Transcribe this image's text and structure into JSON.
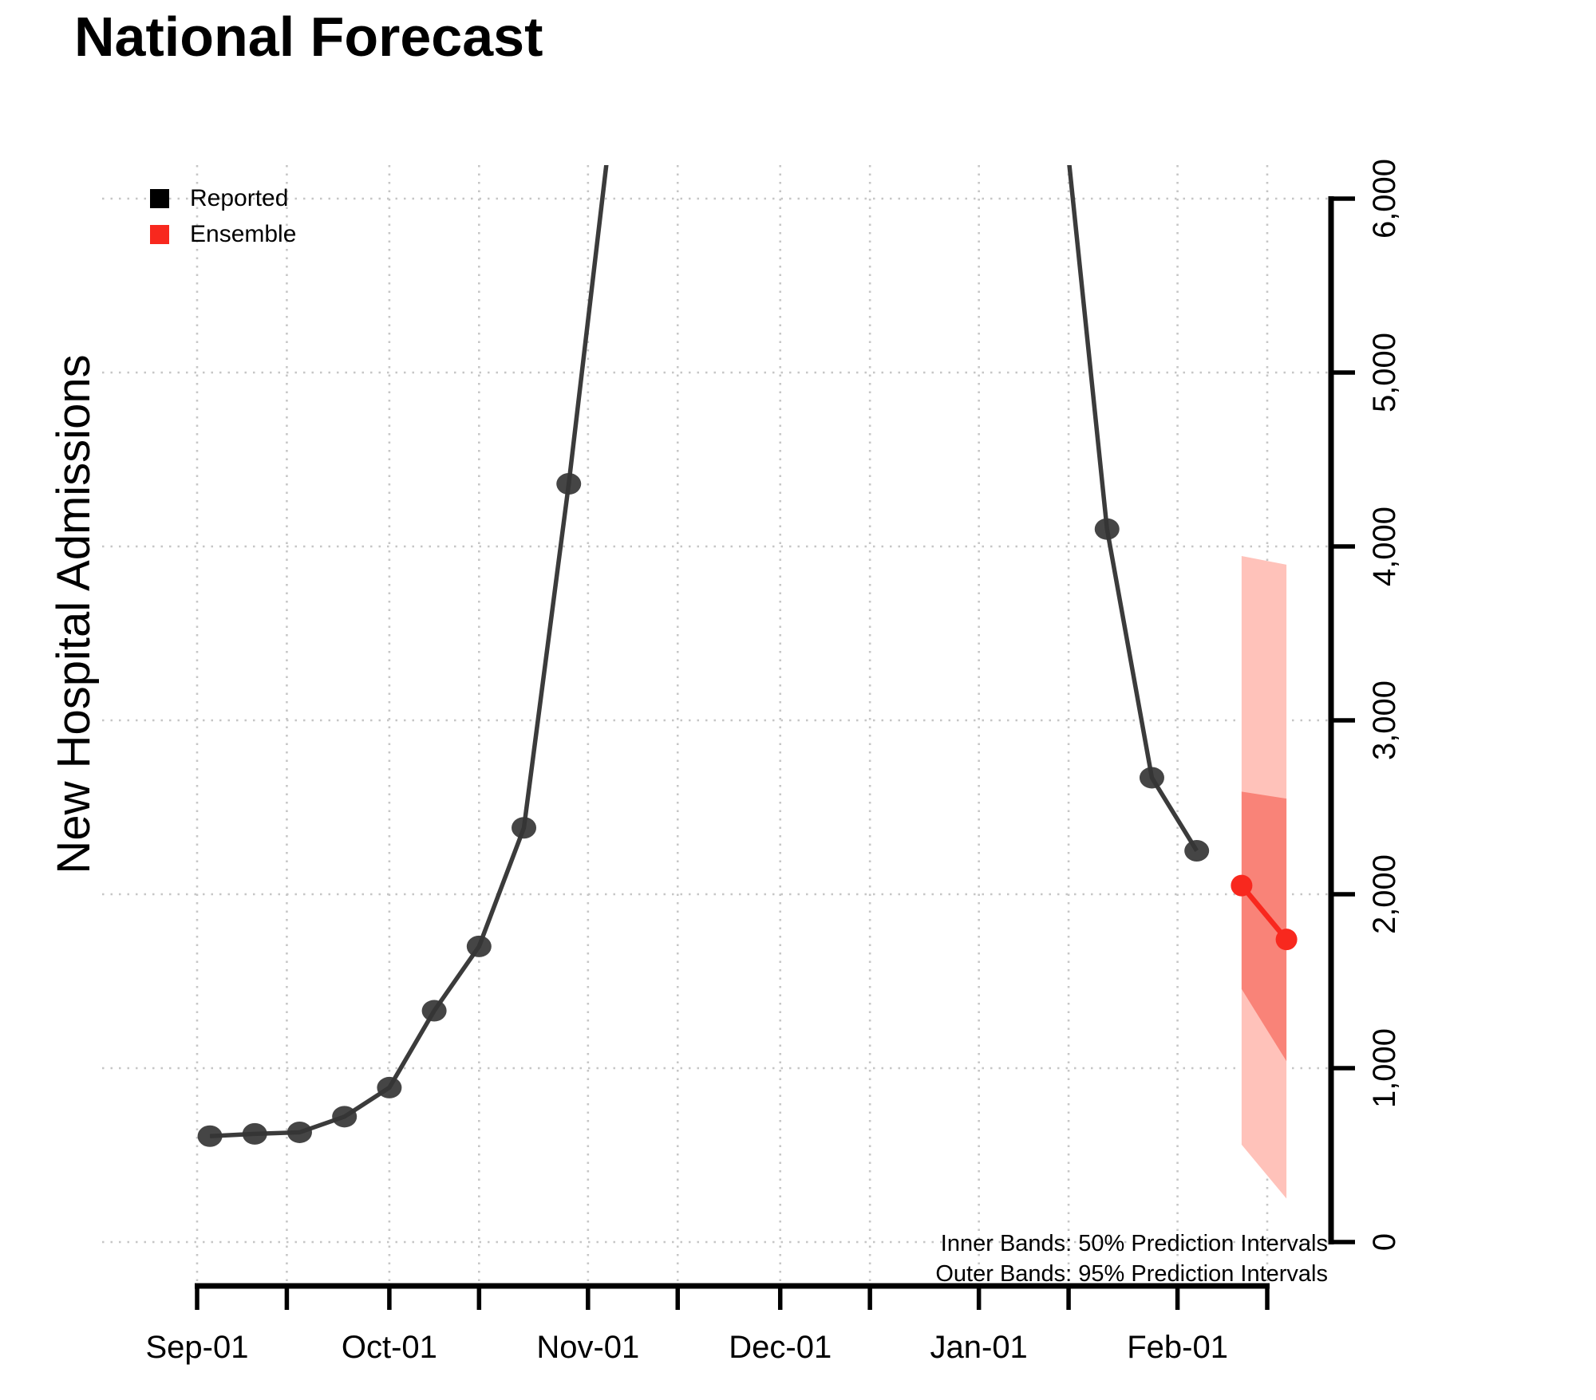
{
  "title": "National Forecast",
  "y_axis_title": "New Hospital Admissions",
  "legend": [
    {
      "label": "Reported",
      "color": "#000000"
    },
    {
      "label": "Ensemble",
      "color": "#f8281e"
    }
  ],
  "annotations": [
    "Inner Bands: 50% Prediction Intervals",
    "Outer Bands: 95% Prediction Intervals"
  ],
  "colors": {
    "reported_line": "#3b3b3b",
    "reported_point": "#353535",
    "ensemble": "#f8281e",
    "band_outer": "#ffc2ba",
    "band_inner": "#f98378",
    "grid": "#c6c6c6",
    "axis": "#000000"
  },
  "chart_data": {
    "type": "line",
    "title": "National Forecast",
    "ylabel": "New Hospital Admissions",
    "grid": "dotted, at every month and mid-month vertically, every 1000 horizontally",
    "legend_position": "top-left",
    "y_axis_side": "right",
    "ylim": [
      0,
      6200
    ],
    "x_range": [
      "Sep-01",
      "Feb-19"
    ],
    "y_axis": {
      "ticks": [
        {
          "value": 0,
          "label": "0"
        },
        {
          "value": 1000,
          "label": "1,000"
        },
        {
          "value": 2000,
          "label": "2,000"
        },
        {
          "value": 3000,
          "label": "3,000"
        },
        {
          "value": 4000,
          "label": "4,000"
        },
        {
          "value": 5000,
          "label": "5,000"
        },
        {
          "value": 6000,
          "label": "6,000"
        }
      ]
    },
    "x_axis": {
      "tick_days": [
        0,
        14,
        30,
        44,
        61,
        75,
        91,
        105,
        122,
        136,
        153,
        167
      ],
      "month_labels": [
        {
          "label": "Sep-01",
          "day": 0
        },
        {
          "label": "Oct-01",
          "day": 30
        },
        {
          "label": "Nov-01",
          "day": 61
        },
        {
          "label": "Dec-01",
          "day": 91
        },
        {
          "label": "Jan-01",
          "day": 122
        },
        {
          "label": "Feb-01",
          "day": 153
        }
      ]
    },
    "series": [
      {
        "name": "Reported (rising segment, weekly)",
        "points": [
          {
            "date": "Sep-03",
            "day": 2,
            "value": 609
          },
          {
            "date": "Sep-10",
            "day": 9,
            "value": 622
          },
          {
            "date": "Sep-17",
            "day": 16,
            "value": 631
          },
          {
            "date": "Sep-24",
            "day": 23,
            "value": 721
          },
          {
            "date": "Oct-01",
            "day": 30,
            "value": 888
          },
          {
            "date": "Oct-08",
            "day": 37,
            "value": 1330
          },
          {
            "date": "Oct-15",
            "day": 44,
            "value": 1700
          },
          {
            "date": "Oct-22",
            "day": 51,
            "value": 2382
          },
          {
            "date": "Oct-29",
            "day": 58,
            "value": 4360
          },
          {
            "date": "Nov-05",
            "day": 65,
            "value": 6550,
            "offchart": true
          }
        ]
      },
      {
        "name": "Reported (descending segment, weekly)",
        "points": [
          {
            "date": "Jan-14",
            "day": 135,
            "value": 6590,
            "offchart": true
          },
          {
            "date": "Jan-21",
            "day": 142,
            "value": 4100
          },
          {
            "date": "Jan-28",
            "day": 149,
            "value": 2670
          },
          {
            "date": "Feb-04",
            "day": 156,
            "value": 2250
          }
        ]
      },
      {
        "name": "Ensemble forecast",
        "points": [
          {
            "date": "Feb-11",
            "day": 163,
            "value": 2050
          },
          {
            "date": "Feb-18",
            "day": 170,
            "value": 1740
          }
        ]
      }
    ],
    "bands": {
      "outer_95_interval": [
        {
          "date": "Feb-11",
          "day": 163,
          "lower": 560,
          "upper": 3945
        },
        {
          "date": "Feb-18",
          "day": 170,
          "lower": 250,
          "upper": 3895
        }
      ],
      "inner_50_interval": [
        {
          "date": "Feb-11",
          "day": 163,
          "lower": 1455,
          "upper": 2590
        },
        {
          "date": "Feb-18",
          "day": 170,
          "lower": 1040,
          "upper": 2550
        }
      ]
    }
  }
}
